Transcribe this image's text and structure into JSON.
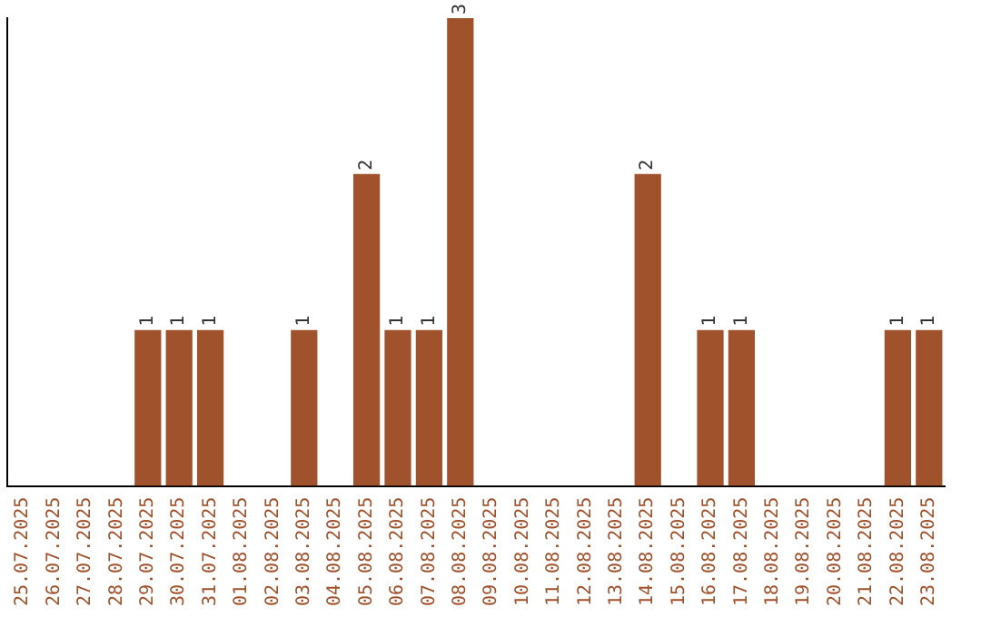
{
  "chart_data": {
    "type": "bar",
    "categories": [
      "25.07.2025",
      "26.07.2025",
      "27.07.2025",
      "28.07.2025",
      "29.07.2025",
      "30.07.2025",
      "31.07.2025",
      "01.08.2025",
      "02.08.2025",
      "03.08.2025",
      "04.08.2025",
      "05.08.2025",
      "06.08.2025",
      "07.08.2025",
      "08.08.2025",
      "09.08.2025",
      "10.08.2025",
      "11.08.2025",
      "12.08.2025",
      "13.08.2025",
      "14.08.2025",
      "15.08.2025",
      "16.08.2025",
      "17.08.2025",
      "18.08.2025",
      "19.08.2025",
      "20.08.2025",
      "21.08.2025",
      "22.08.2025",
      "23.08.2025"
    ],
    "values": [
      0,
      0,
      0,
      0,
      1,
      1,
      1,
      0,
      0,
      1,
      0,
      2,
      1,
      1,
      3,
      0,
      0,
      0,
      0,
      0,
      2,
      0,
      1,
      1,
      0,
      0,
      0,
      0,
      1,
      1
    ],
    "value_labels": [
      null,
      null,
      null,
      null,
      "1",
      "1",
      "1",
      null,
      null,
      "1",
      null,
      "2",
      "1",
      "1",
      "3",
      null,
      null,
      null,
      null,
      null,
      "2",
      null,
      "1",
      "1",
      null,
      null,
      null,
      null,
      "1",
      "1"
    ],
    "color": "#a0522d",
    "grid": false,
    "legend": false,
    "tick_labels": "x"
  }
}
